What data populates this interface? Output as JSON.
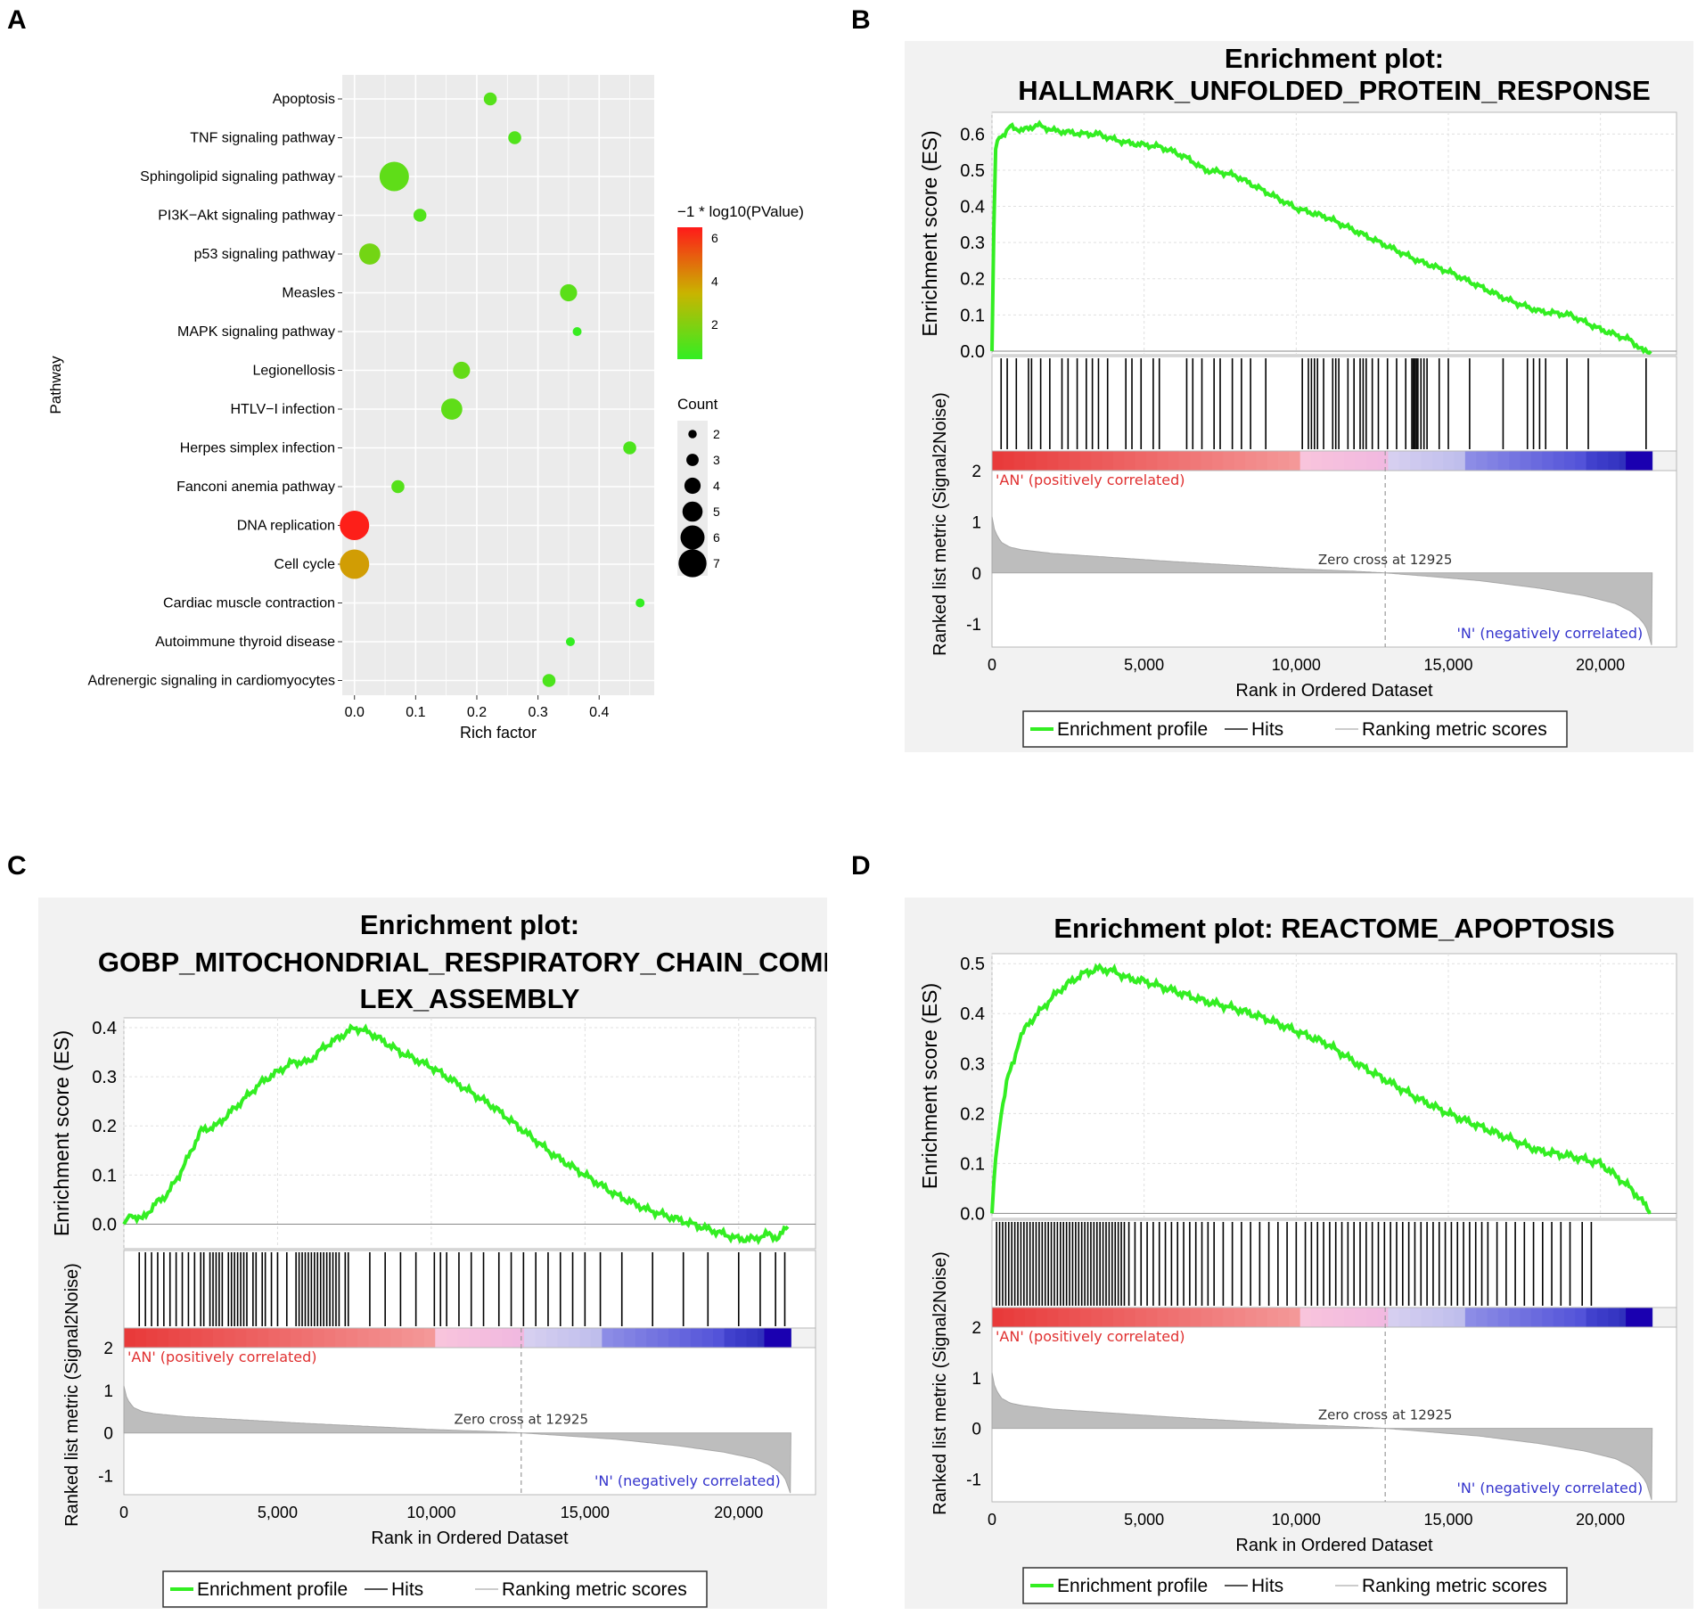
{
  "panel_letters": {
    "a": "A",
    "b": "B",
    "c": "C",
    "d": "D"
  },
  "colors": {
    "es_line": "#33ee22",
    "panel_bg": "#f2f2f2",
    "grid_bg": "#ebebeb",
    "pos_red": "#e03030",
    "neg_blue": "#3333cc",
    "metric_fill": "#bdbdbd",
    "hit_line": "#000000"
  },
  "chart_data": [
    {
      "id": "A",
      "type": "scatter",
      "subtype": "bubble",
      "title": "",
      "xlabel": "Rich factor",
      "ylabel": "Pathway",
      "xlim": [
        -0.02,
        0.49
      ],
      "xticks": [
        0.0,
        0.1,
        0.2,
        0.3,
        0.4
      ],
      "xtick_labels": [
        "0.0",
        "0.1",
        "0.2",
        "0.3",
        "0.4"
      ],
      "grid": true,
      "categories": [
        "Apoptosis",
        "TNF signaling pathway",
        "Sphingolipid signaling pathway",
        "PI3K−Akt signaling pathway",
        "p53 signaling pathway",
        "Measles",
        "MAPK signaling pathway",
        "Legionellosis",
        "HTLV−I infection",
        "Herpes simplex infection",
        "Fanconi anemia pathway",
        "DNA replication",
        "Cell cycle",
        "Cardiac muscle contraction",
        "Autoimmune thyroid disease",
        "Adrenergic signaling in cardiomyocytes"
      ],
      "rich_factor": [
        0.222,
        0.262,
        0.065,
        0.107,
        0.025,
        0.35,
        0.364,
        0.175,
        0.159,
        0.45,
        0.071,
        0.0,
        0.0,
        0.467,
        0.353,
        0.318
      ],
      "count": [
        3,
        3,
        7,
        3,
        5,
        4,
        2,
        4,
        5,
        3,
        3,
        7,
        7,
        2,
        2,
        3
      ],
      "neg_log10_p": [
        1.1,
        1.0,
        1.3,
        1.0,
        1.7,
        1.2,
        0.5,
        1.4,
        1.3,
        0.9,
        1.1,
        6.4,
        3.9,
        0.4,
        0.4,
        0.9
      ],
      "legend_color_title": "−1 * log10(PValue)",
      "legend_color_ticks": [
        6,
        4,
        2
      ],
      "legend_color_range": [
        0.4,
        6.5
      ],
      "legend_size_title": "Count",
      "legend_size_values": [
        2,
        3,
        4,
        5,
        6,
        7
      ]
    },
    {
      "id": "B",
      "type": "line",
      "subtype": "gsea_enrichment",
      "title_line1": "Enrichment plot:",
      "title_line2": "HALLMARK_UNFOLDED_PROTEIN_RESPONSE",
      "ylabel_top": "Enrichment score (ES)",
      "ylabel_bottom": "Ranked list metric (Signal2Noise)",
      "xlabel": "Rank in Ordered Dataset",
      "xlim": [
        0,
        22500
      ],
      "xticks": [
        0,
        5000,
        10000,
        15000,
        20000
      ],
      "xtick_labels": [
        "0",
        "5,000",
        "10,000",
        "15,000",
        "20,000"
      ],
      "es_ylim": [
        -0.01,
        0.66
      ],
      "es_yticks": [
        0.0,
        0.1,
        0.2,
        0.3,
        0.4,
        0.5,
        0.6
      ],
      "es_ytick_labels": [
        "0.0",
        "0.1",
        "0.2",
        "0.3",
        "0.4",
        "0.5",
        "0.6"
      ],
      "es_x": [
        0,
        100,
        200,
        400,
        600,
        1000,
        1500,
        2000,
        2500,
        3000,
        3500,
        4000,
        4500,
        5000,
        5500,
        6000,
        6500,
        7000,
        7500,
        8000,
        9000,
        10000,
        11000,
        12000,
        13000,
        14000,
        15000,
        16000,
        17000,
        18000,
        19000,
        20000,
        21000,
        21400,
        21700
      ],
      "es_y": [
        0.0,
        0.55,
        0.59,
        0.6,
        0.62,
        0.61,
        0.625,
        0.61,
        0.605,
        0.6,
        0.6,
        0.585,
        0.575,
        0.57,
        0.565,
        0.55,
        0.53,
        0.5,
        0.495,
        0.485,
        0.44,
        0.395,
        0.37,
        0.33,
        0.29,
        0.25,
        0.22,
        0.18,
        0.14,
        0.11,
        0.1,
        0.06,
        0.03,
        0.0,
        0.0
      ],
      "hits": [
        300,
        500,
        800,
        1200,
        1300,
        1600,
        1900,
        2300,
        2500,
        2800,
        3100,
        3300,
        3500,
        3800,
        4400,
        4600,
        4900,
        5300,
        5500,
        6400,
        6600,
        6900,
        7300,
        7500,
        7900,
        8200,
        8500,
        9000,
        10200,
        10400,
        10500,
        10600,
        10700,
        10900,
        11200,
        11300,
        11400,
        11700,
        11900,
        12100,
        12200,
        12300,
        12500,
        12700,
        13000,
        13300,
        13600,
        13800,
        13850,
        13900,
        13950,
        14000,
        14100,
        14200,
        14300,
        14700,
        15000,
        15700,
        16800,
        17600,
        17800,
        18000,
        18200,
        18900,
        19600,
        21500
      ],
      "metric_yticks": [
        2,
        1,
        0,
        -1
      ],
      "metric_ylim": [
        -1.45,
        2.0
      ],
      "metric_x": [
        0,
        50,
        150,
        300,
        600,
        1000,
        2000,
        4000,
        6000,
        8000,
        10000,
        12000,
        12925,
        14000,
        16000,
        18000,
        19500,
        20500,
        21000,
        21300,
        21500,
        21600,
        21700
      ],
      "metric_y": [
        1.1,
        0.9,
        0.75,
        0.6,
        0.5,
        0.45,
        0.38,
        0.3,
        0.22,
        0.15,
        0.08,
        0.03,
        0.0,
        -0.05,
        -0.15,
        -0.3,
        -0.45,
        -0.6,
        -0.75,
        -0.9,
        -1.05,
        -1.25,
        -1.45
      ],
      "zero_cross_rank": 12925,
      "zero_cross_label": "Zero cross at 12925",
      "pos_label": "'AN' (positively correlated)",
      "neg_label": "'N' (negatively correlated)",
      "n_total": 21700,
      "legend": [
        "Enrichment profile",
        "Hits",
        "Ranking metric scores"
      ]
    },
    {
      "id": "C",
      "type": "line",
      "subtype": "gsea_enrichment",
      "title_line1": "Enrichment plot:",
      "title_line2": "GOBP_MITOCHONDRIAL_RESPIRATORY_CHAIN_COMP",
      "title_line3": "LEX_ASSEMBLY",
      "ylabel_top": "Enrichment score (ES)",
      "ylabel_bottom": "Ranked list metric (Signal2Noise)",
      "xlabel": "Rank in Ordered Dataset",
      "xlim": [
        0,
        22500
      ],
      "xticks": [
        0,
        5000,
        10000,
        15000,
        20000
      ],
      "xtick_labels": [
        "0",
        "5,000",
        "10,000",
        "15,000",
        "20,000"
      ],
      "es_ylim": [
        -0.05,
        0.42
      ],
      "es_yticks": [
        0.0,
        0.1,
        0.2,
        0.3,
        0.4
      ],
      "es_ytick_labels": [
        "0.0",
        "0.1",
        "0.2",
        "0.3",
        "0.4"
      ],
      "es_x": [
        0,
        200,
        600,
        1000,
        1400,
        1800,
        2200,
        2500,
        3000,
        3500,
        4000,
        4500,
        5000,
        5500,
        6000,
        6500,
        7000,
        7500,
        8000,
        9000,
        10000,
        11000,
        12000,
        13000,
        14000,
        15000,
        16000,
        17000,
        18000,
        19000,
        20000,
        20500,
        21000,
        21300,
        21600
      ],
      "es_y": [
        0.0,
        0.02,
        0.01,
        0.04,
        0.06,
        0.1,
        0.15,
        0.19,
        0.2,
        0.23,
        0.26,
        0.29,
        0.31,
        0.33,
        0.33,
        0.36,
        0.38,
        0.4,
        0.39,
        0.35,
        0.32,
        0.28,
        0.24,
        0.19,
        0.14,
        0.1,
        0.06,
        0.03,
        0.01,
        -0.01,
        -0.03,
        -0.03,
        -0.02,
        -0.03,
        0.0
      ],
      "hits": [
        500,
        700,
        900,
        1100,
        1300,
        1500,
        1700,
        1900,
        2100,
        2300,
        2500,
        2600,
        2800,
        2900,
        3000,
        3100,
        3200,
        3400,
        3500,
        3600,
        3700,
        3800,
        3900,
        4000,
        4200,
        4300,
        4500,
        4600,
        4800,
        5000,
        5300,
        5600,
        5700,
        5800,
        5900,
        6000,
        6100,
        6200,
        6300,
        6400,
        6500,
        6600,
        6700,
        6800,
        6900,
        7000,
        7200,
        7300,
        8000,
        8500,
        9000,
        9500,
        10100,
        10300,
        10500,
        10900,
        11300,
        11700,
        12200,
        12600,
        13000,
        13400,
        13800,
        14200,
        14600,
        15000,
        15500,
        16200,
        17200,
        18200,
        19000,
        20000,
        20700,
        21200,
        21500
      ],
      "metric_yticks": [
        2,
        1,
        0,
        -1
      ],
      "metric_ylim": [
        -1.45,
        2.0
      ],
      "metric_x": [
        0,
        50,
        150,
        300,
        600,
        1000,
        2000,
        4000,
        6000,
        8000,
        10000,
        12000,
        12925,
        14000,
        16000,
        18000,
        19500,
        20500,
        21000,
        21300,
        21500,
        21600,
        21700
      ],
      "metric_y": [
        1.1,
        0.9,
        0.75,
        0.6,
        0.5,
        0.45,
        0.38,
        0.3,
        0.22,
        0.15,
        0.08,
        0.03,
        0.0,
        -0.05,
        -0.15,
        -0.3,
        -0.45,
        -0.6,
        -0.75,
        -0.9,
        -1.05,
        -1.25,
        -1.45
      ],
      "zero_cross_rank": 12925,
      "zero_cross_label": "Zero cross at 12925",
      "pos_label": "'AN' (positively correlated)",
      "neg_label": "'N' (negatively correlated)",
      "n_total": 21700,
      "legend": [
        "Enrichment profile",
        "Hits",
        "Ranking metric scores"
      ]
    },
    {
      "id": "D",
      "type": "line",
      "subtype": "gsea_enrichment",
      "title_line1": "Enrichment plot:  REACTOME_APOPTOSIS",
      "ylabel_top": "Enrichment score (ES)",
      "ylabel_bottom": "Ranked list metric (Signal2Noise)",
      "xlabel": "Rank in Ordered Dataset",
      "xlim": [
        0,
        22500
      ],
      "xticks": [
        0,
        5000,
        10000,
        15000,
        20000
      ],
      "xtick_labels": [
        "0",
        "5,000",
        "10,000",
        "15,000",
        "20,000"
      ],
      "es_ylim": [
        -0.01,
        0.52
      ],
      "es_yticks": [
        0.0,
        0.1,
        0.2,
        0.3,
        0.4,
        0.5
      ],
      "es_ytick_labels": [
        "0.0",
        "0.1",
        "0.2",
        "0.3",
        "0.4",
        "0.5"
      ],
      "es_x": [
        0,
        100,
        300,
        500,
        700,
        900,
        1200,
        1500,
        1800,
        2100,
        2500,
        3000,
        3500,
        4000,
        4500,
        5000,
        6000,
        7000,
        8000,
        9000,
        10000,
        11000,
        12000,
        13000,
        14000,
        15000,
        16000,
        17000,
        18000,
        19000,
        20000,
        21000,
        21700
      ],
      "es_y": [
        0.0,
        0.1,
        0.2,
        0.27,
        0.3,
        0.35,
        0.38,
        0.4,
        0.42,
        0.44,
        0.46,
        0.48,
        0.49,
        0.485,
        0.47,
        0.465,
        0.445,
        0.425,
        0.41,
        0.39,
        0.365,
        0.34,
        0.3,
        0.265,
        0.23,
        0.2,
        0.175,
        0.15,
        0.125,
        0.115,
        0.1,
        0.05,
        0.0
      ],
      "hits": [
        150,
        250,
        350,
        450,
        550,
        650,
        750,
        850,
        950,
        1050,
        1150,
        1250,
        1350,
        1450,
        1550,
        1650,
        1750,
        1850,
        1950,
        2050,
        2150,
        2250,
        2350,
        2450,
        2550,
        2650,
        2750,
        2850,
        2950,
        3050,
        3150,
        3250,
        3350,
        3450,
        3550,
        3650,
        3750,
        3850,
        3950,
        4050,
        4150,
        4250,
        4350,
        4500,
        4700,
        4900,
        5100,
        5300,
        5500,
        5700,
        5900,
        6100,
        6300,
        6500,
        6700,
        6900,
        7100,
        7300,
        7600,
        7900,
        8200,
        8500,
        8800,
        9100,
        9400,
        9700,
        10000,
        10300,
        10500,
        10700,
        10900,
        11100,
        11300,
        11500,
        11700,
        11900,
        12100,
        12300,
        12500,
        12700,
        12900,
        13100,
        13300,
        13500,
        13700,
        13900,
        14100,
        14300,
        14500,
        14700,
        14900,
        15100,
        15300,
        15500,
        15700,
        15900,
        16100,
        16300,
        16600,
        16900,
        17200,
        17500,
        17800,
        18100,
        18400,
        18700,
        19000,
        19400,
        19700
      ],
      "metric_yticks": [
        2,
        1,
        0,
        -1
      ],
      "metric_ylim": [
        -1.45,
        2.0
      ],
      "metric_x": [
        0,
        50,
        150,
        300,
        600,
        1000,
        2000,
        4000,
        6000,
        8000,
        10000,
        12000,
        12925,
        14000,
        16000,
        18000,
        19500,
        20500,
        21000,
        21300,
        21500,
        21600,
        21700
      ],
      "metric_y": [
        1.1,
        0.9,
        0.75,
        0.6,
        0.5,
        0.45,
        0.38,
        0.3,
        0.22,
        0.15,
        0.08,
        0.03,
        0.0,
        -0.05,
        -0.15,
        -0.3,
        -0.45,
        -0.6,
        -0.75,
        -0.9,
        -1.05,
        -1.25,
        -1.45
      ],
      "zero_cross_rank": 12925,
      "zero_cross_label": "Zero cross at 12925",
      "pos_label": "'AN' (positively correlated)",
      "neg_label": "'N' (negatively correlated)",
      "n_total": 21700,
      "legend": [
        "Enrichment profile",
        "Hits",
        "Ranking metric scores"
      ]
    }
  ]
}
